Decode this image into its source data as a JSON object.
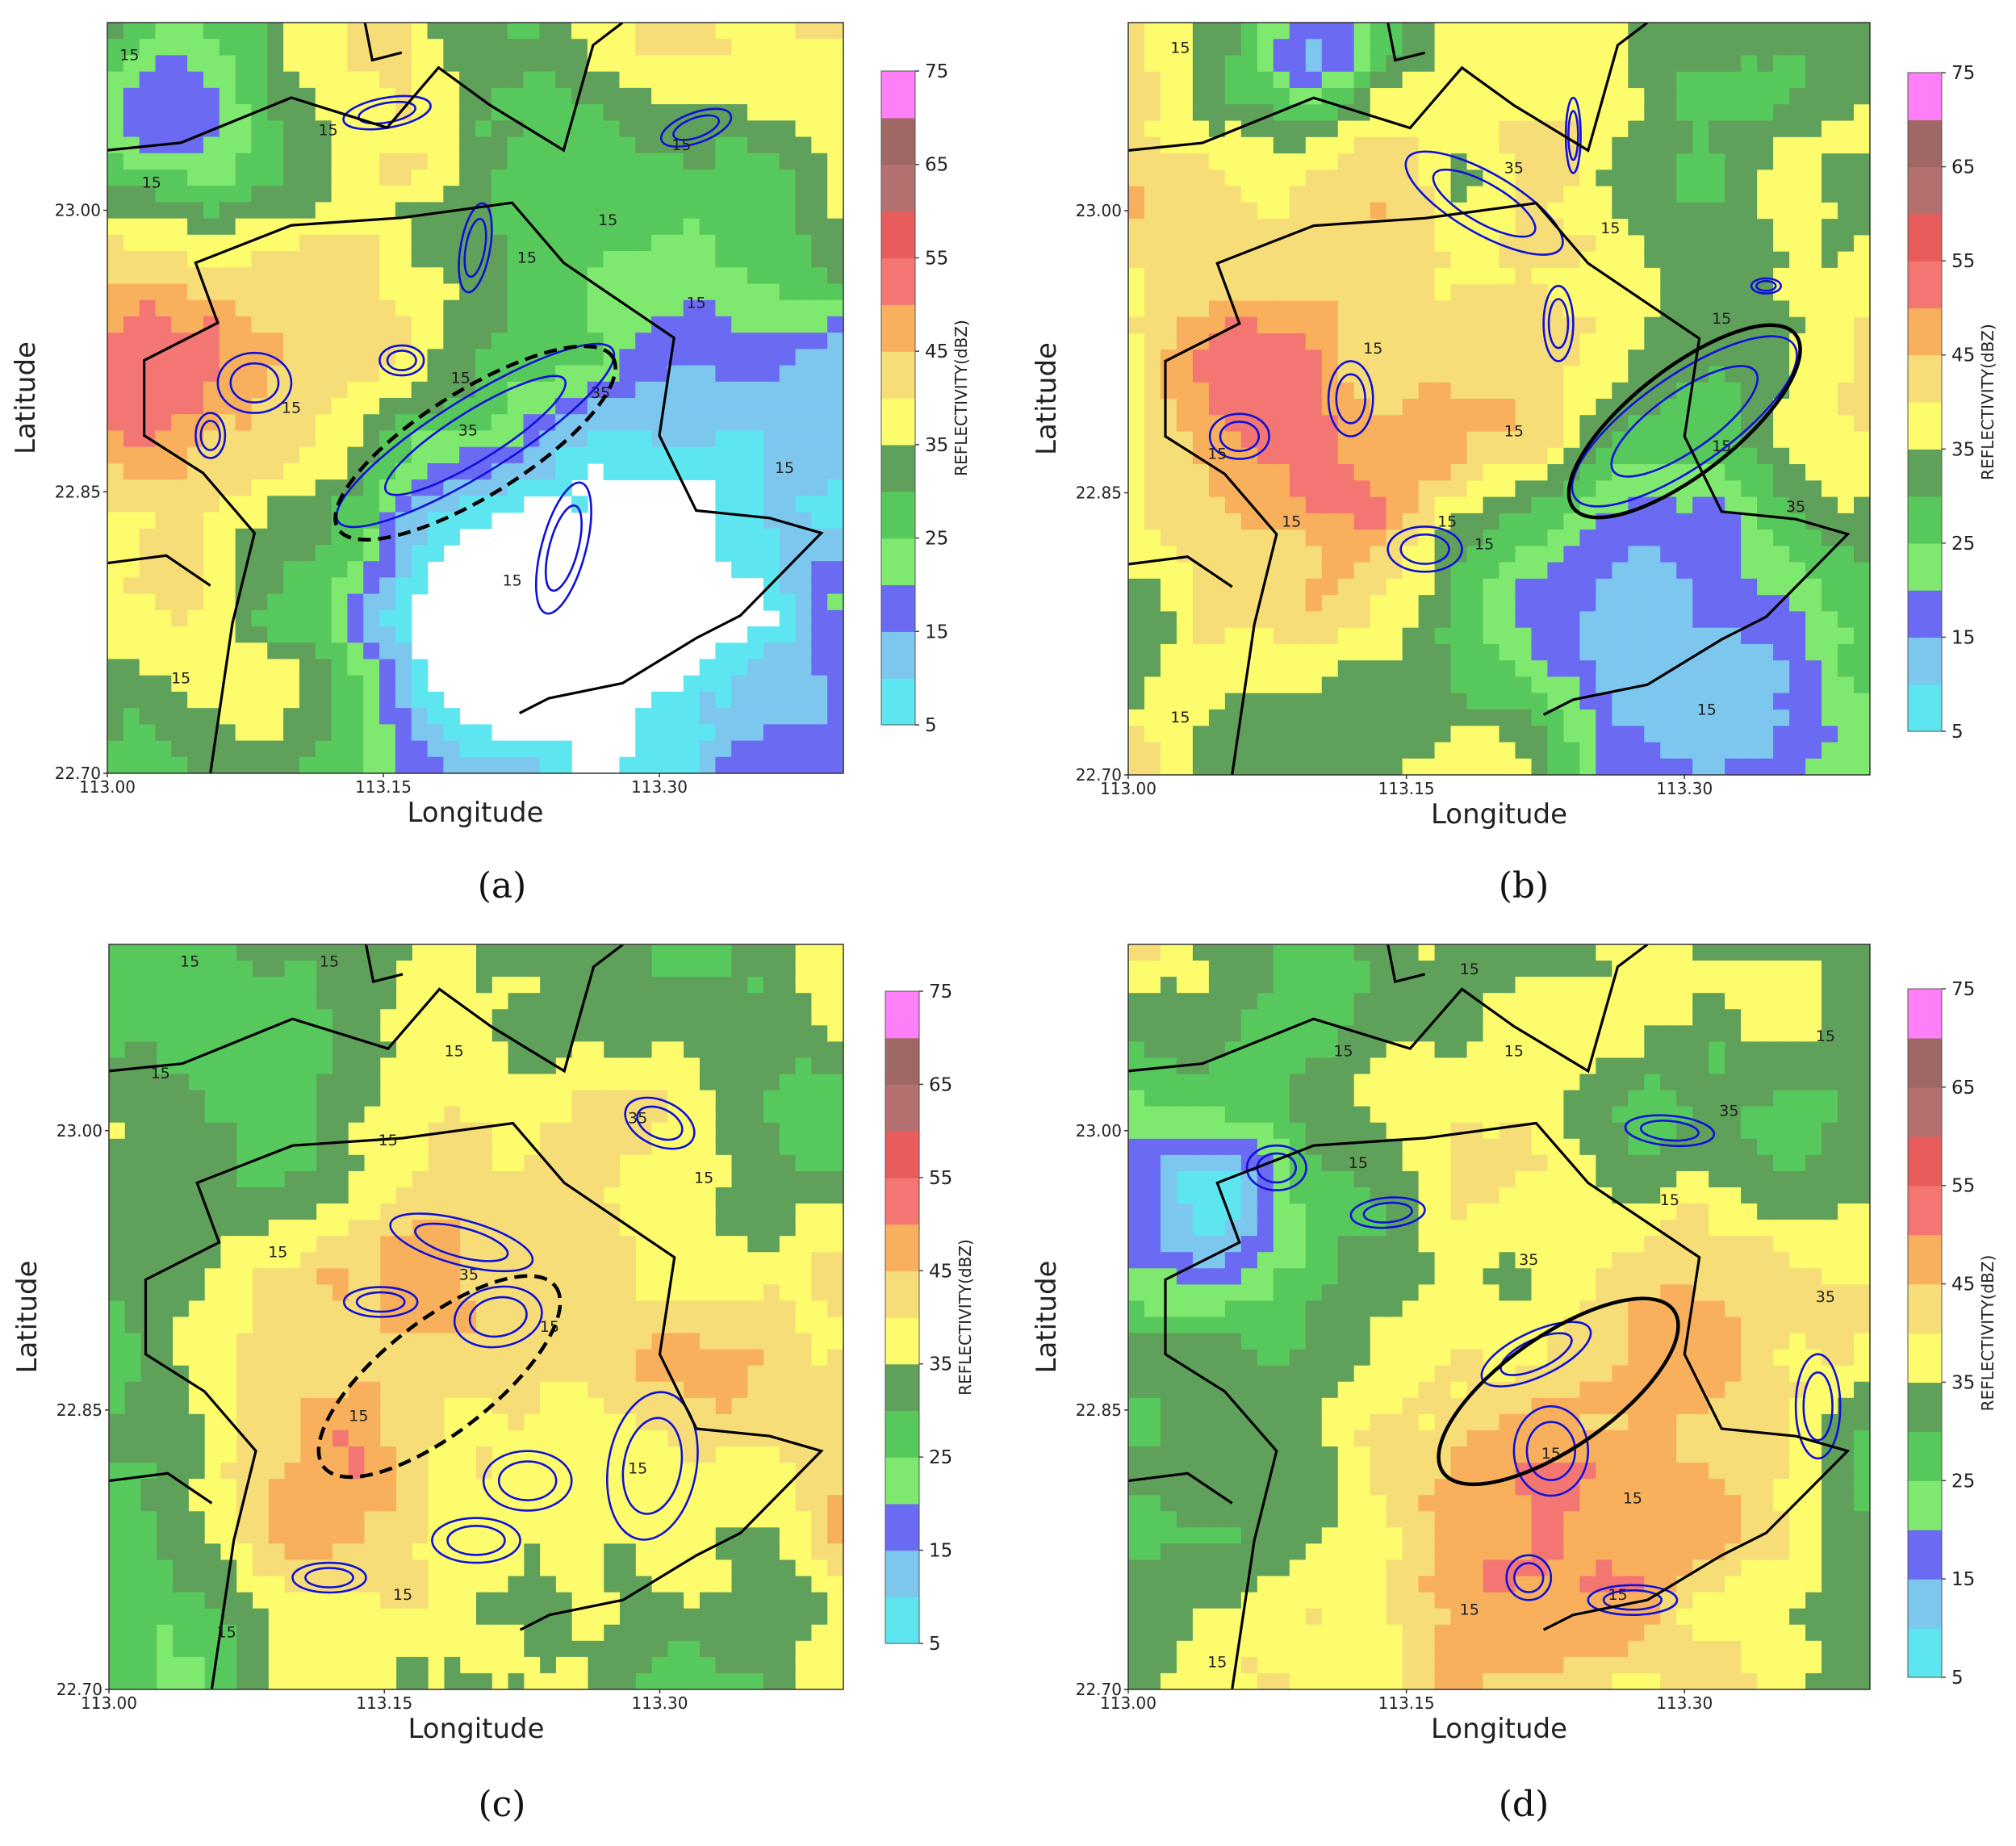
{
  "colorbar": {
    "title": "REFLECTIVITY(dBZ)",
    "ticks": [
      5,
      15,
      25,
      35,
      45,
      55,
      65,
      75
    ],
    "levels": [
      5,
      10,
      15,
      20,
      25,
      30,
      35,
      40,
      45,
      50,
      55,
      60,
      65,
      70,
      75
    ],
    "colors": [
      "#5ee6f0",
      "#7dc7ef",
      "#6a6af3",
      "#7fe86f",
      "#57c85c",
      "#5fa05a",
      "#fdfc6c",
      "#f6dd78",
      "#f9b05c",
      "#f37673",
      "#e85c5c",
      "#b3706e",
      "#a06864",
      "#ff7ff8",
      "#c9a9e8"
    ]
  },
  "contour_colors": {
    "line": "#1010d8",
    "boundary": "#000000"
  },
  "chart_data": [
    {
      "type": "heatmap",
      "panel_label": "(a)",
      "xlabel": "Longitude",
      "ylabel": "Latitude",
      "xticks": [
        "113.00",
        "113.15",
        "113.30"
      ],
      "yticks": [
        "22.70",
        "22.85",
        "23.00"
      ],
      "xlim": [
        113.0,
        113.4
      ],
      "ylim": [
        22.7,
        23.1
      ],
      "contour_labels": [
        "15",
        "15",
        "15",
        "15",
        "15",
        "15",
        "35",
        "35",
        "15",
        "15",
        "15",
        "15",
        "15",
        "15"
      ],
      "highlight": {
        "shape": "ellipse",
        "style": "dashed"
      }
    },
    {
      "type": "heatmap",
      "panel_label": "(b)",
      "xlabel": "Longitude",
      "ylabel": "Latitude",
      "xticks": [
        "113.00",
        "113.15",
        "113.30"
      ],
      "yticks": [
        "22.70",
        "22.85",
        "23.00"
      ],
      "xlim": [
        113.0,
        113.4
      ],
      "ylim": [
        22.7,
        23.1
      ],
      "contour_labels": [
        "15",
        "15",
        "15",
        "15",
        "15",
        "15",
        "15",
        "15",
        "35",
        "15",
        "35",
        "15",
        "15",
        "15"
      ],
      "highlight": {
        "shape": "ellipse",
        "style": "solid"
      }
    },
    {
      "type": "heatmap",
      "panel_label": "(c)",
      "xlabel": "Longitude",
      "ylabel": "Latitude",
      "xticks": [
        "113.00",
        "113.15",
        "113.30"
      ],
      "yticks": [
        "22.70",
        "22.85",
        "23.00"
      ],
      "xlim": [
        113.0,
        113.4
      ],
      "ylim": [
        22.7,
        23.1
      ],
      "contour_labels": [
        "15",
        "15",
        "15",
        "15",
        "15",
        "35",
        "15",
        "15",
        "15",
        "35",
        "15",
        "15",
        "15",
        "15"
      ],
      "highlight": {
        "shape": "ellipse",
        "style": "dashed"
      }
    },
    {
      "type": "heatmap",
      "panel_label": "(d)",
      "xlabel": "Longitude",
      "ylabel": "Latitude",
      "xticks": [
        "113.00",
        "113.15",
        "113.30"
      ],
      "yticks": [
        "22.70",
        "22.85",
        "23.00"
      ],
      "xlim": [
        113.0,
        113.4
      ],
      "ylim": [
        22.7,
        23.1
      ],
      "contour_labels": [
        "15",
        "15",
        "15",
        "35",
        "15",
        "15",
        "15",
        "35",
        "15",
        "15",
        "35",
        "15",
        "15",
        "15"
      ],
      "highlight": {
        "shape": "ellipse",
        "style": "solid"
      }
    }
  ]
}
